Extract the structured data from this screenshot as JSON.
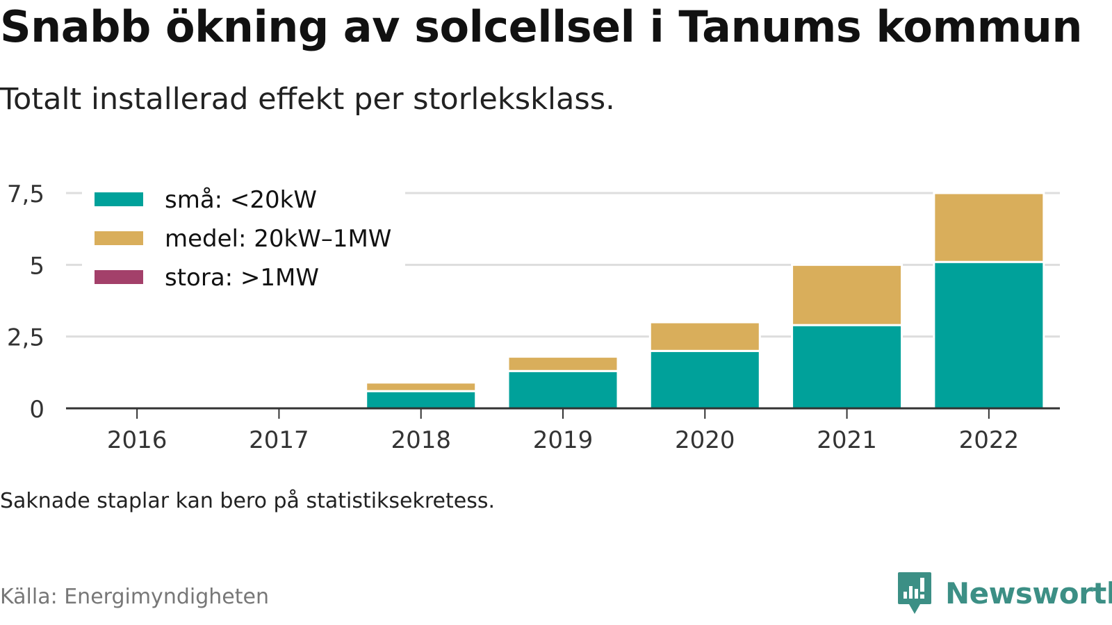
{
  "header": {
    "title": "Snabb ökning av solcellsel i Tanums kommun",
    "subtitle": "Totalt installerad effekt per storleksklass."
  },
  "footer": {
    "note": "Saknade staplar kan bero på statistiksekretess.",
    "source": "Källa: Energimyndigheten",
    "brand": "Newsworthy"
  },
  "colors": {
    "small": "#00a19a",
    "medium": "#d9ae5b",
    "large": "#a3406a",
    "grid": "#dddddd",
    "axis": "#333333"
  },
  "chart_data": {
    "type": "bar",
    "stacked": true,
    "title": "Snabb ökning av solcellsel i Tanums kommun",
    "subtitle": "Totalt installerad effekt per storleksklass.",
    "categories": [
      "2016",
      "2017",
      "2018",
      "2019",
      "2020",
      "2021",
      "2022"
    ],
    "series": [
      {
        "name": "små: <20kW",
        "color": "#00a19a",
        "values": [
          0,
          0,
          0.6,
          1.3,
          2.0,
          2.9,
          5.1
        ]
      },
      {
        "name": "medel: 20kW–1MW",
        "color": "#d9ae5b",
        "values": [
          0,
          0,
          0.3,
          0.5,
          1.0,
          2.1,
          2.4
        ]
      },
      {
        "name": "stora: >1MW",
        "color": "#a3406a",
        "values": [
          0,
          0,
          0,
          0,
          0,
          0,
          0
        ]
      }
    ],
    "y_ticks": [
      0,
      2.5,
      5,
      7.5
    ],
    "y_tick_labels": [
      "0",
      "2,5",
      "5",
      "7,5"
    ],
    "ylim": [
      0,
      7.5
    ],
    "grid": true,
    "legend_position": "top-left"
  }
}
